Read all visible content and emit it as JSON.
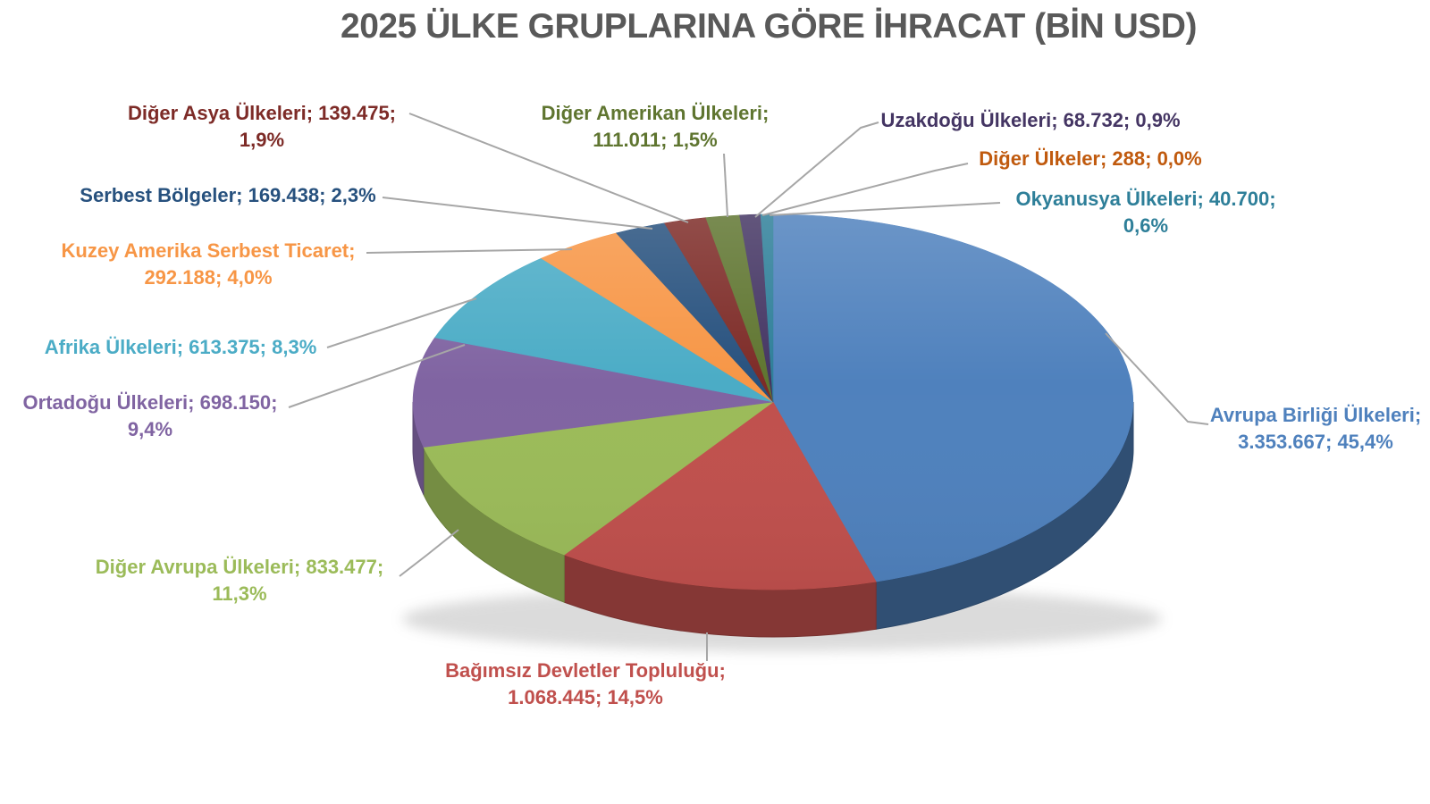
{
  "title": "2025 ÜLKE GRUPLARINA GÖRE İHRACAT (BİN USD)",
  "title_color": "#595959",
  "background_color": "#ffffff",
  "leader_line_color": "#A6A6A6",
  "chart_data": {
    "type": "pie",
    "style": "3d",
    "title": "2025 ÜLKE GRUPLARINA GÖRE İHRACAT (BİN USD)",
    "unit": "BİN USD",
    "label_format": "name; value; percent",
    "legend_position": "none",
    "slices": [
      {
        "name": "Avrupa Birliği Ülkeleri",
        "value": 3353667,
        "value_display": "3.353.667",
        "pct": "45,4%",
        "color": "#4F81BD",
        "label_lines": [
          "Avrupa Birliği Ülkeleri;",
          "3.353.667; 45,4%"
        ]
      },
      {
        "name": "Bağımsız Devletler Topluluğu",
        "value": 1068445,
        "value_display": "1.068.445",
        "pct": "14,5%",
        "color": "#C0504D",
        "label_lines": [
          "Bağımsız Devletler Topluluğu;",
          "1.068.445; 14,5%"
        ]
      },
      {
        "name": "Diğer Avrupa Ülkeleri",
        "value": 833477,
        "value_display": "833.477",
        "pct": "11,3%",
        "color": "#9BBB59",
        "label_lines": [
          "Diğer Avrupa Ülkeleri; 833.477;",
          "11,3%"
        ]
      },
      {
        "name": "Ortadoğu Ülkeleri",
        "value": 698150,
        "value_display": "698.150",
        "pct": "9,4%",
        "color": "#8064A2",
        "label_lines": [
          "Ortadoğu Ülkeleri; 698.150;",
          "9,4%"
        ]
      },
      {
        "name": "Afrika Ülkeleri",
        "value": 613375,
        "value_display": "613.375",
        "pct": "8,3%",
        "color": "#4BACC6",
        "label_lines": [
          "Afrika Ülkeleri; 613.375; 8,3%"
        ]
      },
      {
        "name": "Kuzey Amerika Serbest Ticaret",
        "value": 292188,
        "value_display": "292.188",
        "pct": "4,0%",
        "color": "#F79646",
        "label_lines": [
          "Kuzey Amerika Serbest Ticaret;",
          "292.188; 4,0%"
        ]
      },
      {
        "name": "Serbest Bölgeler",
        "value": 169438,
        "value_display": "169.438",
        "pct": "2,3%",
        "color": "#27517E",
        "label_lines": [
          "Serbest Bölgeler; 169.438; 2,3%"
        ]
      },
      {
        "name": "Diğer Asya Ülkeleri",
        "value": 139475,
        "value_display": "139.475",
        "pct": "1,9%",
        "color": "#7D2B27",
        "label_lines": [
          "Diğer Asya Ülkeleri; 139.475;",
          "1,9%"
        ]
      },
      {
        "name": "Diğer Amerikan Ülkeleri",
        "value": 111011,
        "value_display": "111.011",
        "pct": "1,5%",
        "color": "#5F7530",
        "label_lines": [
          "Diğer Amerikan Ülkeleri;",
          "111.011; 1,5%"
        ]
      },
      {
        "name": "Uzakdoğu Ülkeleri",
        "value": 68732,
        "value_display": "68.732",
        "pct": "0,9%",
        "color": "#443563",
        "label_lines": [
          "Uzakdoğu Ülkeleri; 68.732; 0,9%"
        ]
      },
      {
        "name": "Diğer Ülkeler",
        "value": 288,
        "value_display": "288",
        "pct": "0,0%",
        "color": "#C05A0E",
        "label_lines": [
          "Diğer Ülkeler; 288; 0,0%"
        ]
      },
      {
        "name": "Okyanusya Ülkeleri",
        "value": 40700,
        "value_display": "40.700",
        "pct": "0,6%",
        "color": "#2E7F99",
        "label_lines": [
          "Okyanusya Ülkeleri; 40.700;",
          "0,6%"
        ]
      }
    ]
  }
}
